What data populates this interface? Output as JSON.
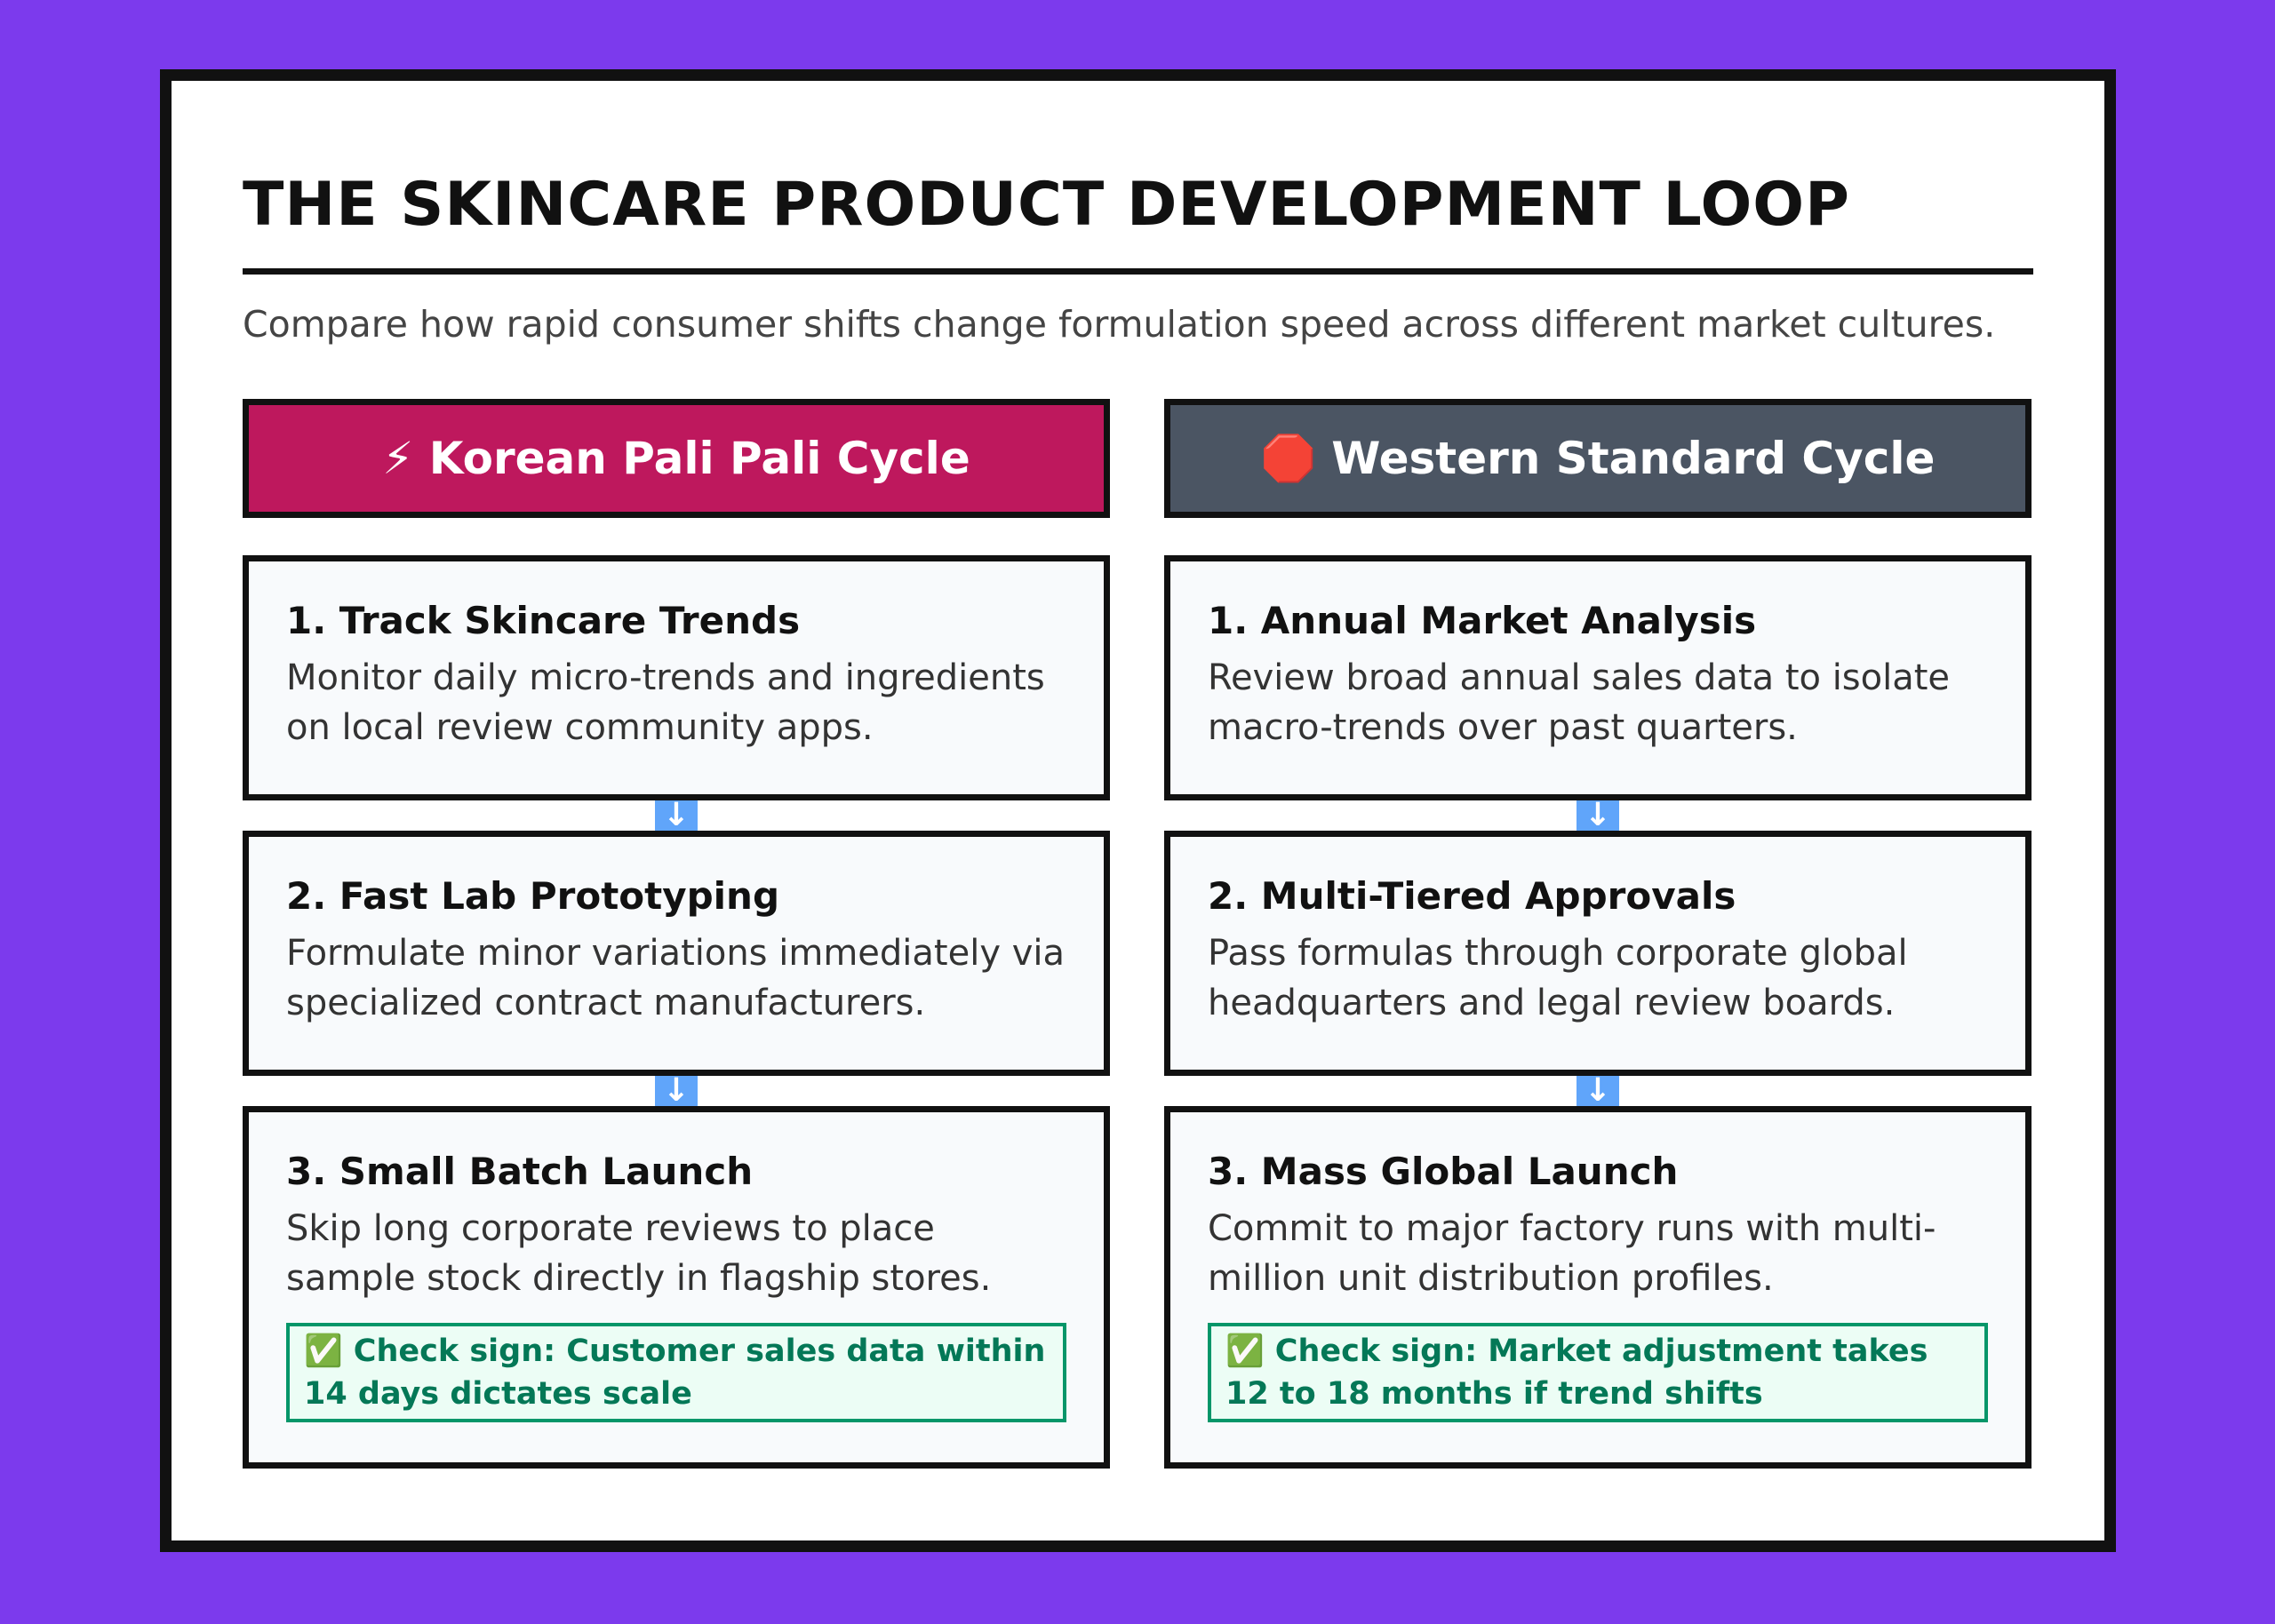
{
  "header": {
    "title": "THE SKINCARE PRODUCT DEVELOPMENT LOOP",
    "subtitle": "Compare how rapid consumer shifts change formulation speed across different market cultures."
  },
  "columns": [
    {
      "title": "⚡ Korean Pali Pali Cycle",
      "steps": [
        {
          "title": "1. Track Skincare Trends",
          "desc": "Monitor daily micro-trends and ingredients on local review community apps."
        },
        {
          "title": "2. Fast Lab Prototyping",
          "desc": "Formulate minor variations immediately via specialized contract manufacturers."
        },
        {
          "title": "3. Small Batch Launch",
          "desc": "Skip long corporate reviews to place sample stock directly in flagship stores."
        }
      ],
      "check": "✅ Check sign: Customer sales data within 14 days dictates scale"
    },
    {
      "title": "🛑 Western Standard Cycle",
      "steps": [
        {
          "title": "1. Annual Market Analysis",
          "desc": "Review broad annual sales data to isolate macro-trends over past quarters."
        },
        {
          "title": "2. Multi-Tiered Approvals",
          "desc": "Pass formulas through corporate global headquarters and legal review boards."
        },
        {
          "title": "3. Mass Global Launch",
          "desc": "Commit to major factory runs with multi-million unit distribution profiles."
        }
      ],
      "check": "✅ Check sign: Market adjustment takes 12 to 18 months if trend shifts"
    }
  ]
}
